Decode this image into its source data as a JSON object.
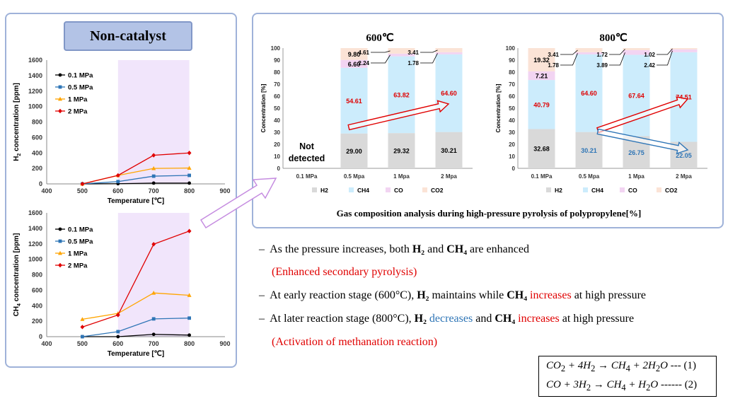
{
  "title": "Non-catalyst",
  "left_charts": [
    {
      "type": "line",
      "ylabel_main": "H",
      "ylabel_sub": "2",
      "ylabel_rest": " concentration [ppm]",
      "xlabel": "Temperature [℃]",
      "xlim": [
        400,
        900
      ],
      "ylim": [
        0,
        1600
      ],
      "x_ticks": [
        "400",
        "500",
        "600",
        "700",
        "800",
        "900"
      ],
      "y_ticks": [
        "0",
        "200",
        "400",
        "600",
        "800",
        "1000",
        "1200",
        "1400",
        "1600"
      ],
      "x": [
        500,
        600,
        700,
        800
      ],
      "series": [
        {
          "name": "0.1 MPa",
          "color": "#000000",
          "marker": "circle",
          "values": [
            0,
            2,
            10,
            10
          ]
        },
        {
          "name": "0.5 MPa",
          "color": "#2e75b6",
          "marker": "square",
          "values": [
            0,
            30,
            100,
            110
          ]
        },
        {
          "name": "1 MPa",
          "color": "#ffa500",
          "marker": "triangle",
          "values": [
            0,
            110,
            200,
            205
          ]
        },
        {
          "name": "2 MPa",
          "color": "#e00000",
          "marker": "diamond",
          "values": [
            0,
            110,
            370,
            400
          ]
        }
      ],
      "highlight": [
        600,
        800
      ],
      "grid": false,
      "legend": "top-left"
    },
    {
      "type": "line",
      "ylabel_main": "CH",
      "ylabel_sub": "4",
      "ylabel_rest": " concentration [ppm]",
      "xlabel": "Temperature [℃]",
      "xlim": [
        400,
        900
      ],
      "ylim": [
        0,
        1600
      ],
      "x_ticks": [
        "400",
        "500",
        "600",
        "700",
        "800",
        "900"
      ],
      "y_ticks": [
        "0",
        "200",
        "400",
        "600",
        "800",
        "1000",
        "1200",
        "1400",
        "1600"
      ],
      "x": [
        500,
        600,
        700,
        800
      ],
      "series": [
        {
          "name": "0.1 MPa",
          "color": "#000000",
          "marker": "circle",
          "values": [
            0,
            0,
            30,
            20
          ]
        },
        {
          "name": "0.5 MPa",
          "color": "#2e75b6",
          "marker": "square",
          "values": [
            0,
            65,
            230,
            240
          ]
        },
        {
          "name": "1 MPa",
          "color": "#ffa500",
          "marker": "triangle",
          "values": [
            225,
            300,
            565,
            535
          ]
        },
        {
          "name": "2 MPa",
          "color": "#e00000",
          "marker": "diamond",
          "values": [
            125,
            280,
            1195,
            1365
          ]
        }
      ],
      "highlight": [
        600,
        800
      ],
      "grid": false,
      "legend": "top-left"
    }
  ],
  "chart_data": [
    {
      "type": "bar",
      "stacked": true,
      "title": "600℃",
      "ylabel": "Concentration [%]",
      "ylim": [
        0,
        100
      ],
      "y_ticks": [
        "0",
        "10",
        "20",
        "30",
        "40",
        "50",
        "60",
        "70",
        "80",
        "90",
        "100"
      ],
      "categories": [
        "0.1 MPa",
        "0.5 Mpa",
        "1 Mpa",
        "2 Mpa"
      ],
      "not_detected": [
        "Not",
        "detected"
      ],
      "series": [
        {
          "name": "H2",
          "color": "#d9d9d9",
          "values": [
            null,
            29.0,
            29.32,
            30.21
          ]
        },
        {
          "name": "CH4",
          "color": "#ccecfc",
          "values": [
            null,
            54.61,
            63.82,
            64.6
          ]
        },
        {
          "name": "CO",
          "color": "#f2d4f2",
          "values": [
            null,
            6.6,
            2.24,
            1.78
          ]
        },
        {
          "name": "CO2",
          "color": "#fbe3d6",
          "values": [
            null,
            9.8,
            4.61,
            3.41
          ]
        }
      ],
      "data_labels": [
        "29.00",
        "54.61",
        "6.60",
        "9.80",
        "29.32",
        "63.82",
        "2.24",
        "4.61",
        "30.21",
        "64.60",
        "1.78",
        "3.41"
      ],
      "legend": "bottom"
    },
    {
      "type": "bar",
      "stacked": true,
      "title": "800℃",
      "ylabel": "Concentration [%]",
      "ylim": [
        0,
        100
      ],
      "y_ticks": [
        "0",
        "10",
        "20",
        "30",
        "40",
        "50",
        "60",
        "70",
        "80",
        "90",
        "100"
      ],
      "categories": [
        "0.1 MPa",
        "0.5 Mpa",
        "1 Mpa",
        "2 Mpa"
      ],
      "series": [
        {
          "name": "H2",
          "color": "#d9d9d9",
          "values": [
            32.68,
            30.21,
            26.75,
            22.05
          ]
        },
        {
          "name": "CH4",
          "color": "#ccecfc",
          "values": [
            40.79,
            64.6,
            67.64,
            74.51
          ]
        },
        {
          "name": "CO",
          "color": "#f2d4f2",
          "values": [
            7.21,
            1.78,
            3.89,
            2.42
          ]
        },
        {
          "name": "CO2",
          "color": "#fbe3d6",
          "values": [
            19.32,
            3.41,
            1.72,
            1.02
          ]
        }
      ],
      "data_labels": [
        "32.68",
        "40.79",
        "7.21",
        "19.32",
        "30.21",
        "64.60",
        "1.78",
        "3.41",
        "26.75",
        "67.64",
        "3.89",
        "1.72",
        "22.05",
        "74.51",
        "2.42",
        "1.02"
      ],
      "legend": "bottom"
    }
  ],
  "caption": "Gas composition analysis during high-pressure pyrolysis of polypropylene[%]",
  "bullets": {
    "dash": "–",
    "b1": {
      "a": "As the pressure increases, both ",
      "h2": "H₂",
      "mid": " and ",
      "ch4": "CH₄",
      "end": " are enhanced"
    },
    "b1_note": "(Enhanced secondary pyrolysis)",
    "b2": {
      "a": "At early reaction stage (600°C), ",
      "h2": "H₂",
      "mid": " maintains while ",
      "ch4": "CH₄",
      "inc": " increases",
      "end": " at high pressure"
    },
    "b3": {
      "a": "At later reaction stage (800°C), ",
      "h2": "H₂",
      "dec": " decreases",
      "mid": " and ",
      "ch4": "CH₄",
      "inc": " increases",
      "end": " at high pressure"
    },
    "b3_note": "(Activation of methanation reaction)"
  },
  "equations": [
    {
      "lhs1": "CO",
      "s1": "2",
      "lhs2": " + 4H",
      "s2": "2",
      "arrow": " → ",
      "rhs1": "CH",
      "s3": "4",
      "rhs2": " + 2H",
      "s4": "2",
      "rhs3": "O",
      "tag": " --- (1)"
    },
    {
      "lhs1": "CO",
      "s1": "",
      "lhs2": " + 3H",
      "s2": "2",
      "arrow": " → ",
      "rhs1": "CH",
      "s3": "4",
      "rhs2": " + H",
      "s4": "2",
      "rhs3": "O",
      "tag": " ------ (2)"
    }
  ],
  "colors": {
    "panel_border": "#9fb2d9",
    "title_bg": "#b3c3e6",
    "highlight": "#f1e5fb",
    "accent_red": "#e00000",
    "accent_blue": "#2e75b6",
    "big_arrow": "#c58ce0"
  }
}
